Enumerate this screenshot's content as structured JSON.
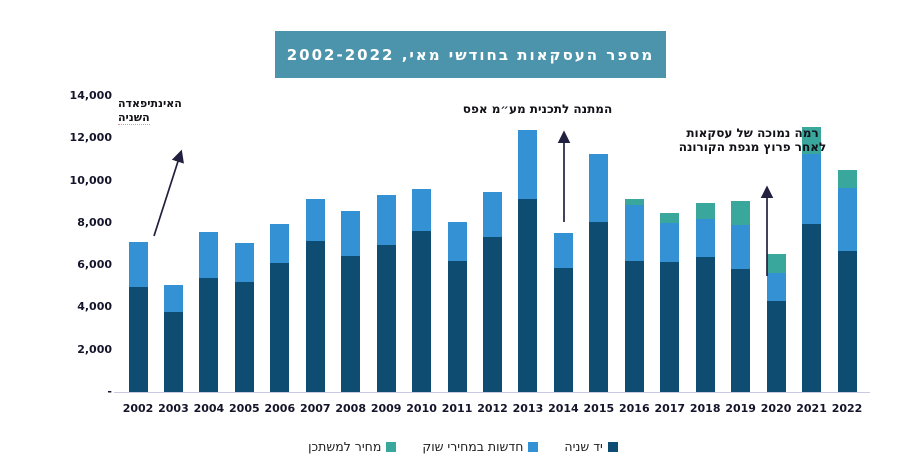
{
  "title": {
    "text": "מספר העסקאות בחודשי מאי, 2002-2022",
    "background": "#4b94ab",
    "text_color": "#ffffff"
  },
  "y_axis": {
    "ticks": [
      {
        "label": "14,000",
        "value": 14000
      },
      {
        "label": "12,000",
        "value": 12000
      },
      {
        "label": "10,000",
        "value": 10000
      },
      {
        "label": "8,000",
        "value": 8000
      },
      {
        "label": "6,000",
        "value": 6000
      },
      {
        "label": "4,000",
        "value": 4000
      },
      {
        "label": "2,000",
        "value": 2000
      },
      {
        "label": "-",
        "value": 0
      }
    ]
  },
  "chart_data": {
    "type": "bar",
    "stacked": true,
    "title": "מספר העסקאות בחודשי מאי, 2002-2022",
    "categories": [
      "2002",
      "2003",
      "2004",
      "2005",
      "2006",
      "2007",
      "2008",
      "2009",
      "2010",
      "2011",
      "2012",
      "2013",
      "2014",
      "2015",
      "2016",
      "2017",
      "2018",
      "2019",
      "2020",
      "2021",
      "2022"
    ],
    "series": [
      {
        "name": "יד שניה",
        "color": "#0e4d71",
        "values": [
          4950,
          3800,
          5400,
          5200,
          6100,
          7150,
          6450,
          6950,
          7600,
          6200,
          7350,
          9150,
          5850,
          8050,
          6200,
          6150,
          6400,
          5800,
          4300,
          7950,
          6650
        ]
      },
      {
        "name": "חדשות במחירי שוק",
        "color": "#3492d4",
        "values": [
          2150,
          1250,
          2150,
          1850,
          1850,
          2000,
          2100,
          2350,
          2000,
          1850,
          2100,
          3250,
          1650,
          3200,
          2650,
          1850,
          1800,
          2100,
          1350,
          3300,
          3000
        ]
      },
      {
        "name": "מחיר למשתכן",
        "color": "#3aa79c",
        "values": [
          0,
          0,
          0,
          0,
          0,
          0,
          0,
          0,
          0,
          0,
          0,
          0,
          0,
          0,
          300,
          450,
          750,
          1150,
          900,
          1300,
          850
        ]
      }
    ],
    "ylim": [
      0,
      14000
    ],
    "y_tick_step": 2000,
    "grid": false,
    "legend_position": "bottom"
  },
  "legend": {
    "items": [
      {
        "label": "מחיר למשתכן",
        "color": "#3aa79c"
      },
      {
        "label": "חדשות במחירי שוק",
        "color": "#3492d4"
      },
      {
        "label": "יד שניה",
        "color": "#0e4d71"
      }
    ]
  },
  "annotations": [
    {
      "id": "intifada",
      "lines": [
        "האינתיפאדה",
        "השניה"
      ]
    },
    {
      "id": "vat",
      "lines": [
        "המתנה לתכנית מע״מ אפס"
      ]
    },
    {
      "id": "corona",
      "lines": [
        "רמה נמוכה של עסקאות",
        "לאחר פרוץ מגפת הקורונה"
      ]
    }
  ],
  "arrow_color": "#21213f"
}
